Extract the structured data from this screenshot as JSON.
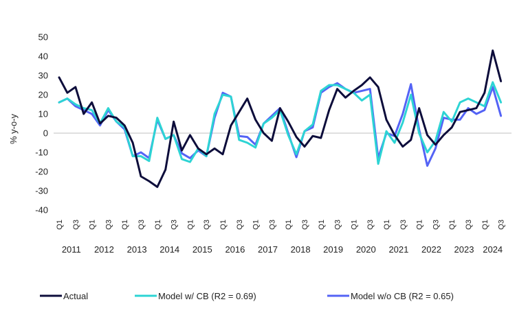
{
  "chart_data": {
    "type": "line",
    "xlabel": "",
    "ylabel": "% y-o-y",
    "ylim": [
      -40,
      50
    ],
    "yticks": [
      50,
      40,
      30,
      20,
      10,
      0,
      -10,
      -20,
      -30,
      -40
    ],
    "quarter_labels": [
      "Q1",
      "Q3"
    ],
    "years": [
      "2011",
      "2012",
      "2013",
      "2014",
      "2015",
      "2016",
      "2017",
      "2018",
      "2019",
      "2020",
      "2021",
      "2022",
      "2023",
      "2024"
    ],
    "quarters_per_year": 4,
    "grid": false,
    "legend_position": "bottom",
    "series": [
      {
        "name": "Actual",
        "color": "#0d0d3b",
        "values": [
          29,
          21,
          24,
          10,
          16,
          5,
          9,
          8,
          4,
          -5,
          -22.5,
          -25,
          -28,
          -19,
          6,
          -9,
          -1,
          -8,
          -11,
          -8,
          -11,
          4,
          11,
          18,
          7,
          0,
          -4,
          13,
          6,
          -2,
          -7,
          -1.5,
          -2.5,
          12,
          23,
          18.5,
          22,
          25,
          29,
          24,
          7,
          -1,
          -7,
          -3.5,
          13,
          -1,
          -6,
          -1,
          3,
          11,
          12,
          13,
          21,
          43,
          27
        ]
      },
      {
        "name": "Model w/ CB (R2 = 0.69)",
        "color": "#2dd4d4",
        "values": [
          16,
          18,
          15,
          13,
          12,
          5,
          13,
          6,
          3,
          -12,
          -12,
          -14.5,
          8,
          -3,
          -1,
          -13.5,
          -15,
          -8,
          -12,
          10,
          20,
          19,
          -3.5,
          -5,
          -7.5,
          5,
          8,
          12,
          -1,
          -11,
          1,
          4.5,
          22,
          25,
          25,
          23,
          21,
          17,
          20,
          -16,
          1,
          -5,
          5.5,
          20,
          0,
          -10,
          -4,
          11,
          6,
          16,
          18,
          16,
          14,
          26.5,
          16
        ]
      },
      {
        "name": "Model w/o CB (R2 = 0.65)",
        "color": "#5463f5",
        "values": [
          16,
          18,
          14,
          12,
          10,
          4,
          12,
          6,
          2,
          -12,
          -10,
          -13,
          7,
          -3,
          -1,
          -10.5,
          -13,
          -9,
          -12,
          8,
          21,
          19,
          -1.5,
          -2,
          -6,
          5,
          9,
          13,
          0,
          -12.5,
          1,
          3,
          21,
          24,
          26,
          23,
          21,
          22,
          23,
          -13,
          0,
          -1.5,
          10,
          25.5,
          2,
          -17,
          -8,
          8,
          7,
          7,
          13,
          10,
          12,
          24,
          9
        ]
      }
    ]
  }
}
